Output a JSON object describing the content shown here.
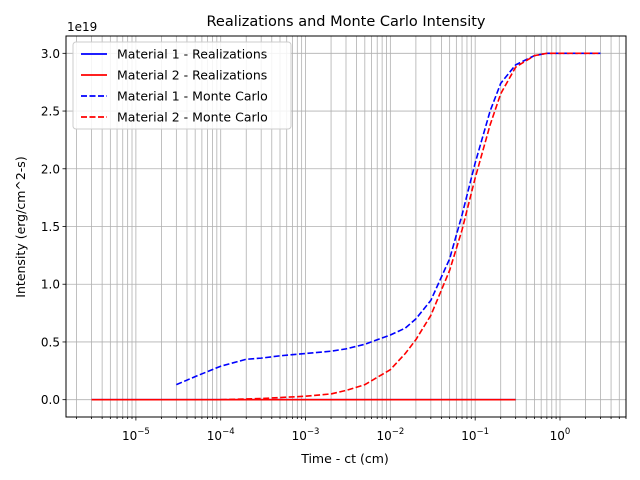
{
  "chart_data": {
    "type": "line",
    "title": "Realizations and Monte Carlo Intensity",
    "xlabel": "Time - ct (cm)",
    "ylabel": "Intensity (erg/cm^2-s)",
    "y_offset_label": "1e19",
    "xscale": "log",
    "xlim": [
      1.5e-06,
      6
    ],
    "ylim": [
      -0.15,
      3.15
    ],
    "x_ticks": [
      {
        "value": 1e-05,
        "mantissa": "10",
        "exp": "−5"
      },
      {
        "value": 0.0001,
        "mantissa": "10",
        "exp": "−4"
      },
      {
        "value": 0.001,
        "mantissa": "10",
        "exp": "−3"
      },
      {
        "value": 0.01,
        "mantissa": "10",
        "exp": "−2"
      },
      {
        "value": 0.1,
        "mantissa": "10",
        "exp": "−1"
      },
      {
        "value": 1,
        "mantissa": "10",
        "exp": "0"
      }
    ],
    "y_ticks": [
      {
        "value": 0.0,
        "label": "0.0"
      },
      {
        "value": 0.5,
        "label": "0.5"
      },
      {
        "value": 1.0,
        "label": "1.0"
      },
      {
        "value": 1.5,
        "label": "1.5"
      },
      {
        "value": 2.0,
        "label": "2.0"
      },
      {
        "value": 2.5,
        "label": "2.5"
      },
      {
        "value": 3.0,
        "label": "3.0"
      }
    ],
    "grid": true,
    "grid_minor_x": true,
    "legend_position": "upper-left",
    "series": [
      {
        "name": "Material 1 - Realizations",
        "color": "#0000ff",
        "style": "solid",
        "points": [
          [
            3e-06,
            0.0
          ],
          [
            0.3,
            0.0
          ]
        ]
      },
      {
        "name": "Material 2 - Realizations",
        "color": "#ff0000",
        "style": "solid",
        "points": [
          [
            3e-06,
            0.0
          ],
          [
            0.3,
            0.0
          ]
        ]
      },
      {
        "name": "Material 1 - Monte Carlo",
        "color": "#0000ff",
        "style": "dashed",
        "points": [
          [
            3e-05,
            0.13
          ],
          [
            5e-05,
            0.2
          ],
          [
            0.0001,
            0.29
          ],
          [
            0.0002,
            0.35
          ],
          [
            0.0003,
            0.36
          ],
          [
            0.0005,
            0.38
          ],
          [
            0.001,
            0.4
          ],
          [
            0.002,
            0.42
          ],
          [
            0.003,
            0.44
          ],
          [
            0.005,
            0.48
          ],
          [
            0.01,
            0.56
          ],
          [
            0.015,
            0.62
          ],
          [
            0.02,
            0.7
          ],
          [
            0.03,
            0.86
          ],
          [
            0.05,
            1.22
          ],
          [
            0.07,
            1.6
          ],
          [
            0.1,
            2.05
          ],
          [
            0.15,
            2.5
          ],
          [
            0.2,
            2.74
          ],
          [
            0.3,
            2.9
          ],
          [
            0.5,
            2.98
          ],
          [
            0.7,
            3.0
          ],
          [
            1.0,
            3.0
          ],
          [
            3.0,
            3.0
          ]
        ]
      },
      {
        "name": "Material 2 - Monte Carlo",
        "color": "#ff0000",
        "style": "dashed",
        "points": [
          [
            0.0001,
            0.0
          ],
          [
            0.0003,
            0.01
          ],
          [
            0.001,
            0.03
          ],
          [
            0.002,
            0.05
          ],
          [
            0.003,
            0.08
          ],
          [
            0.005,
            0.13
          ],
          [
            0.01,
            0.26
          ],
          [
            0.015,
            0.4
          ],
          [
            0.02,
            0.52
          ],
          [
            0.03,
            0.73
          ],
          [
            0.05,
            1.12
          ],
          [
            0.07,
            1.47
          ],
          [
            0.1,
            1.92
          ],
          [
            0.15,
            2.38
          ],
          [
            0.2,
            2.65
          ],
          [
            0.3,
            2.88
          ],
          [
            0.5,
            2.98
          ],
          [
            0.7,
            3.0
          ],
          [
            1.0,
            3.0
          ],
          [
            3.0,
            3.0
          ]
        ]
      }
    ]
  }
}
